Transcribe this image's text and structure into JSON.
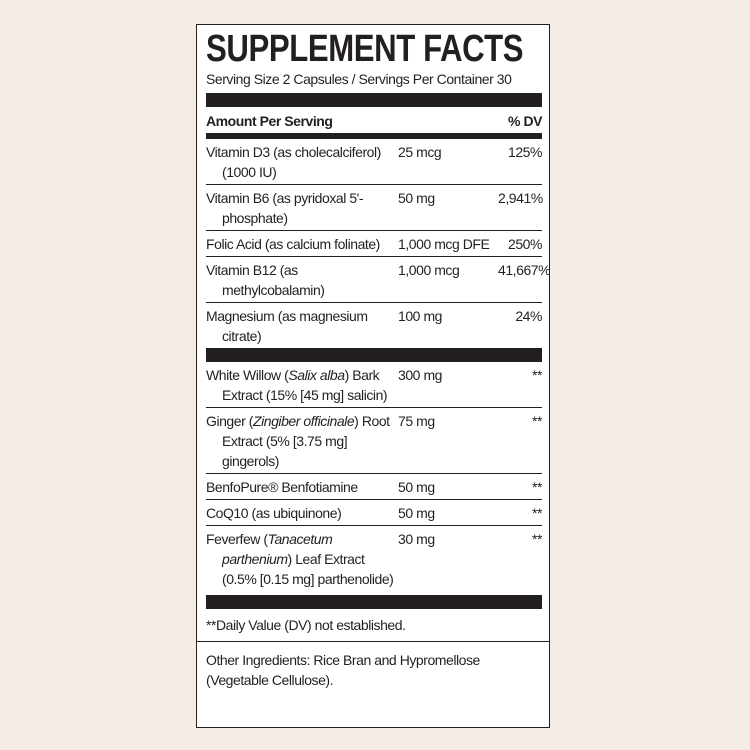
{
  "title": "SUPPLEMENT FACTS",
  "serving": "Serving Size 2 Capsules / Servings Per Container 30",
  "header": {
    "amount": "Amount Per Serving",
    "dv": "% DV"
  },
  "sections": [
    {
      "rows": [
        {
          "name": [
            "Vitamin D3 (as cholecalciferol) (1000 IU)"
          ],
          "amount": "25 mcg",
          "dv": "125%"
        },
        {
          "name": [
            "Vitamin B6 (as pyridoxal 5'-phosphate)"
          ],
          "amount": "50 mg",
          "dv": "2,941%"
        },
        {
          "name": [
            "Folic Acid (as calcium folinate)"
          ],
          "amount": "1,000 mcg DFE",
          "dv": "250%"
        },
        {
          "name": [
            "Vitamin B12 (as methylcobalamin)"
          ],
          "amount": "1,000 mcg",
          "dv": "41,667%"
        },
        {
          "name": [
            "Magnesium (as magnesium citrate)"
          ],
          "amount": "100 mg",
          "dv": "24%"
        }
      ]
    },
    {
      "rows": [
        {
          "name": [
            "White Willow (",
            "Salix alba",
            ") Bark Extract (15% [45 mg] salicin)"
          ],
          "amount": "300 mg",
          "dv": "**"
        },
        {
          "name": [
            "Ginger (",
            "Zingiber officinale",
            ") Root Extract (5% [3.75 mg] gingerols)"
          ],
          "amount": "75 mg",
          "dv": "**"
        },
        {
          "name": [
            "BenfoPure® Benfotiamine"
          ],
          "amount": "50 mg",
          "dv": "**"
        },
        {
          "name": [
            "CoQ10 (as ubiquinone)"
          ],
          "amount": "50 mg",
          "dv": "**"
        },
        {
          "name": [
            "Feverfew (",
            "Tanacetum parthenium",
            ") Leaf Extract (0.5% [0.15 mg] parthenolide)"
          ],
          "amount": "30 mg",
          "dv": "**"
        }
      ]
    }
  ],
  "footnote": "**Daily Value (DV) not established.",
  "other_ingredients": "Other Ingredients: Rice Bran and Hypromellose (Vegetable Cellulose)."
}
